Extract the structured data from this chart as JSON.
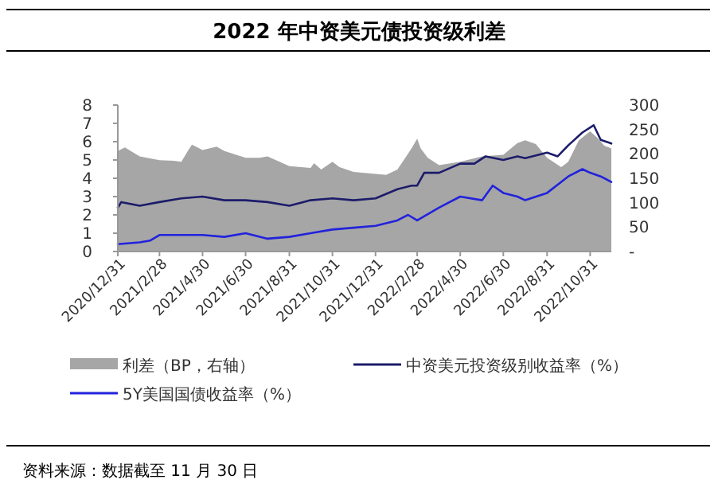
{
  "chart_data": {
    "type": "line",
    "title": "2022 年中资美元债投资级利差",
    "annotations": [
      "资料来源：数据截至 11 月 30 日"
    ],
    "ylim": [
      0,
      8
    ],
    "yticks": [
      0,
      1,
      2,
      3,
      4,
      5,
      6,
      7,
      8
    ],
    "y2lim": [
      0,
      300
    ],
    "y2ticks": [
      {
        "value": 0,
        "label": "-"
      },
      50,
      100,
      150,
      200,
      250,
      300
    ],
    "xlim": [
      "2020-12-31",
      "2022-11-30"
    ],
    "xticks": [
      {
        "value": "2020-12-31",
        "label": "2020/12/31"
      },
      {
        "value": "2021-02-28",
        "label": "2021/2/28"
      },
      {
        "value": "2021-04-30",
        "label": "2021/4/30"
      },
      {
        "value": "2021-06-30",
        "label": "2021/6/30"
      },
      {
        "value": "2021-08-31",
        "label": "2021/8/31"
      },
      {
        "value": "2021-10-31",
        "label": "2021/10/31"
      },
      {
        "value": "2021-12-31",
        "label": "2021/12/31"
      },
      {
        "value": "2022-02-28",
        "label": "2022/2/28"
      },
      {
        "value": "2022-04-30",
        "label": "2022/4/30"
      },
      {
        "value": "2022-06-30",
        "label": "2022/6/30"
      },
      {
        "value": "2022-08-31",
        "label": "2022/8/31"
      },
      {
        "value": "2022-10-31",
        "label": "2022/10/31"
      }
    ],
    "legend": "bottom",
    "grid": false,
    "series": [
      {
        "name": "利差（BP，右轴）",
        "type": "area",
        "axis": "y2",
        "color": "#a6a6a6",
        "x": [
          "2020-12-31",
          "2021-01-10",
          "2021-01-31",
          "2021-02-28",
          "2021-03-20",
          "2021-03-31",
          "2021-04-10",
          "2021-04-15",
          "2021-04-30",
          "2021-05-20",
          "2021-05-31",
          "2021-06-30",
          "2021-07-20",
          "2021-07-31",
          "2021-08-31",
          "2021-09-30",
          "2021-10-05",
          "2021-10-15",
          "2021-10-31",
          "2021-11-10",
          "2021-11-30",
          "2021-12-31",
          "2022-01-15",
          "2022-01-31",
          "2022-02-20",
          "2022-02-28",
          "2022-03-05",
          "2022-03-15",
          "2022-03-31",
          "2022-04-30",
          "2022-05-31",
          "2022-06-30",
          "2022-07-20",
          "2022-07-31",
          "2022-08-15",
          "2022-08-31",
          "2022-09-20",
          "2022-09-30",
          "2022-10-15",
          "2022-10-31",
          "2022-11-10",
          "2022-11-20",
          "2022-11-30"
        ],
        "values": [
          206,
          213,
          195,
          187,
          186,
          184,
          208,
          219,
          208,
          215,
          206,
          192,
          192,
          195,
          175,
          171,
          181,
          168,
          184,
          173,
          163,
          159,
          157,
          168,
          211,
          231,
          211,
          192,
          177,
          184,
          195,
          198,
          222,
          228,
          220,
          192,
          173,
          184,
          228,
          246,
          233,
          217,
          211
        ]
      },
      {
        "name": "中资美元投资级别收益率（%）",
        "color": "#1c1c6b",
        "x": [
          "2020-12-31",
          "2021-01-05",
          "2021-01-31",
          "2021-02-28",
          "2021-03-31",
          "2021-04-30",
          "2021-05-31",
          "2021-06-30",
          "2021-07-31",
          "2021-08-31",
          "2021-09-30",
          "2021-10-31",
          "2021-11-30",
          "2021-12-31",
          "2022-01-31",
          "2022-02-20",
          "2022-02-28",
          "2022-03-10",
          "2022-03-31",
          "2022-04-30",
          "2022-05-20",
          "2022-06-05",
          "2022-06-30",
          "2022-07-20",
          "2022-07-31",
          "2022-08-31",
          "2022-09-15",
          "2022-09-30",
          "2022-10-20",
          "2022-11-05",
          "2022-11-15",
          "2022-11-30"
        ],
        "values": [
          2.4,
          2.7,
          2.5,
          2.7,
          2.9,
          3.0,
          2.8,
          2.8,
          2.7,
          2.5,
          2.8,
          2.9,
          2.8,
          2.9,
          3.4,
          3.6,
          3.6,
          4.3,
          4.3,
          4.8,
          4.8,
          5.2,
          5.0,
          5.2,
          5.1,
          5.4,
          5.2,
          5.8,
          6.5,
          6.9,
          6.1,
          5.9
        ]
      },
      {
        "name": "5Y美国国债收益率（%）",
        "color": "#2222dd",
        "x": [
          "2020-12-31",
          "2021-01-31",
          "2021-02-15",
          "2021-02-28",
          "2021-03-31",
          "2021-04-30",
          "2021-05-31",
          "2021-06-30",
          "2021-07-31",
          "2021-08-31",
          "2021-09-30",
          "2021-10-31",
          "2021-11-30",
          "2021-12-31",
          "2022-01-31",
          "2022-02-15",
          "2022-02-28",
          "2022-03-31",
          "2022-04-30",
          "2022-05-31",
          "2022-06-15",
          "2022-06-30",
          "2022-07-20",
          "2022-07-31",
          "2022-08-31",
          "2022-09-30",
          "2022-10-20",
          "2022-10-31",
          "2022-11-15",
          "2022-11-30"
        ],
        "values": [
          0.4,
          0.5,
          0.6,
          0.9,
          0.9,
          0.9,
          0.8,
          1.0,
          0.7,
          0.8,
          1.0,
          1.2,
          1.3,
          1.4,
          1.7,
          2.0,
          1.7,
          2.4,
          3.0,
          2.8,
          3.6,
          3.2,
          3.0,
          2.8,
          3.2,
          4.1,
          4.5,
          4.3,
          4.1,
          3.8
        ]
      }
    ]
  }
}
